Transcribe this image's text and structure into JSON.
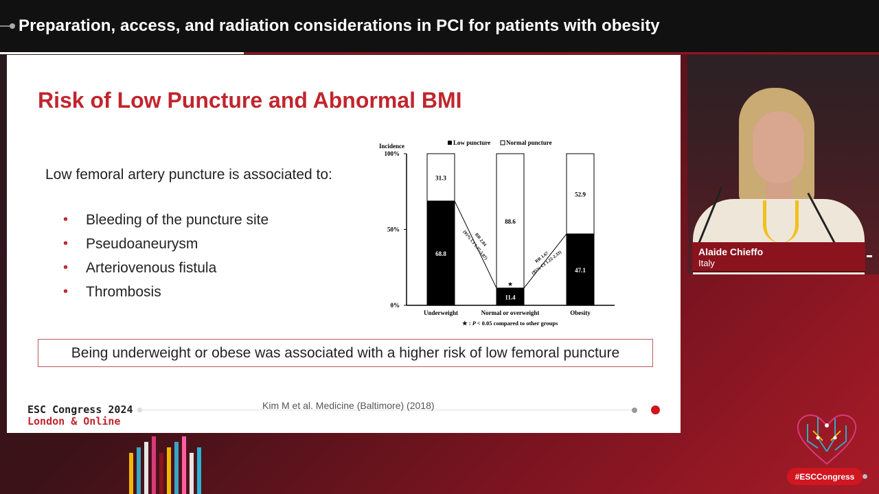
{
  "header": {
    "title": "Preparation, access, and radiation considerations in PCI for patients with obesity"
  },
  "slide": {
    "title": "Risk of Low Puncture and Abnormal BMI",
    "intro": "Low femoral artery puncture is associated to:",
    "bullets": [
      "Bleeding of the puncture site",
      "Pseudoaneurysm",
      "Arteriovenous fistula",
      "Thrombosis"
    ],
    "conclusion": "Being underweight or obese was associated with a higher risk of low femoral puncture",
    "reference": "Kim M et al. Medicine (Baltimore) (2018)",
    "footer": {
      "org_line1": "ESC Congress 2024",
      "org_line2": "London & Online"
    }
  },
  "chart_data": {
    "type": "bar",
    "stacked": true,
    "percent_stacked": true,
    "ylabel": "Incidence",
    "yticks": [
      "0%",
      "50%",
      "100%"
    ],
    "ylim": [
      0,
      100
    ],
    "categories": [
      "Underweight",
      "Normal or overweight",
      "Obesity"
    ],
    "series": [
      {
        "name": "Low puncture",
        "values": [
          68.8,
          11.4,
          47.1
        ],
        "color": "#000000"
      },
      {
        "name": "Normal puncture",
        "values": [
          31.3,
          88.6,
          52.9
        ],
        "color": "#ffffff"
      }
    ],
    "legend_position": "top",
    "annotations": {
      "significance_marker": "★",
      "significance_category": "Normal or overweight",
      "footnote_star": "★ :",
      "footnote_p": "P",
      "footnote_rest": "< 0.05 compared to other groups",
      "left_connector": [
        "RR 2.84",
        "(95% CI 1.37-5.87)"
      ],
      "right_connector": [
        "RR 1.67",
        "(95% CI 1.22-2.33)"
      ]
    }
  },
  "speaker": {
    "name": "Alaide Chieffo",
    "country": "Italy"
  },
  "branding": {
    "hashtag": "#ESCCongress"
  },
  "colors": {
    "accent_red": "#c0262d",
    "brand_red": "#d0161f"
  }
}
